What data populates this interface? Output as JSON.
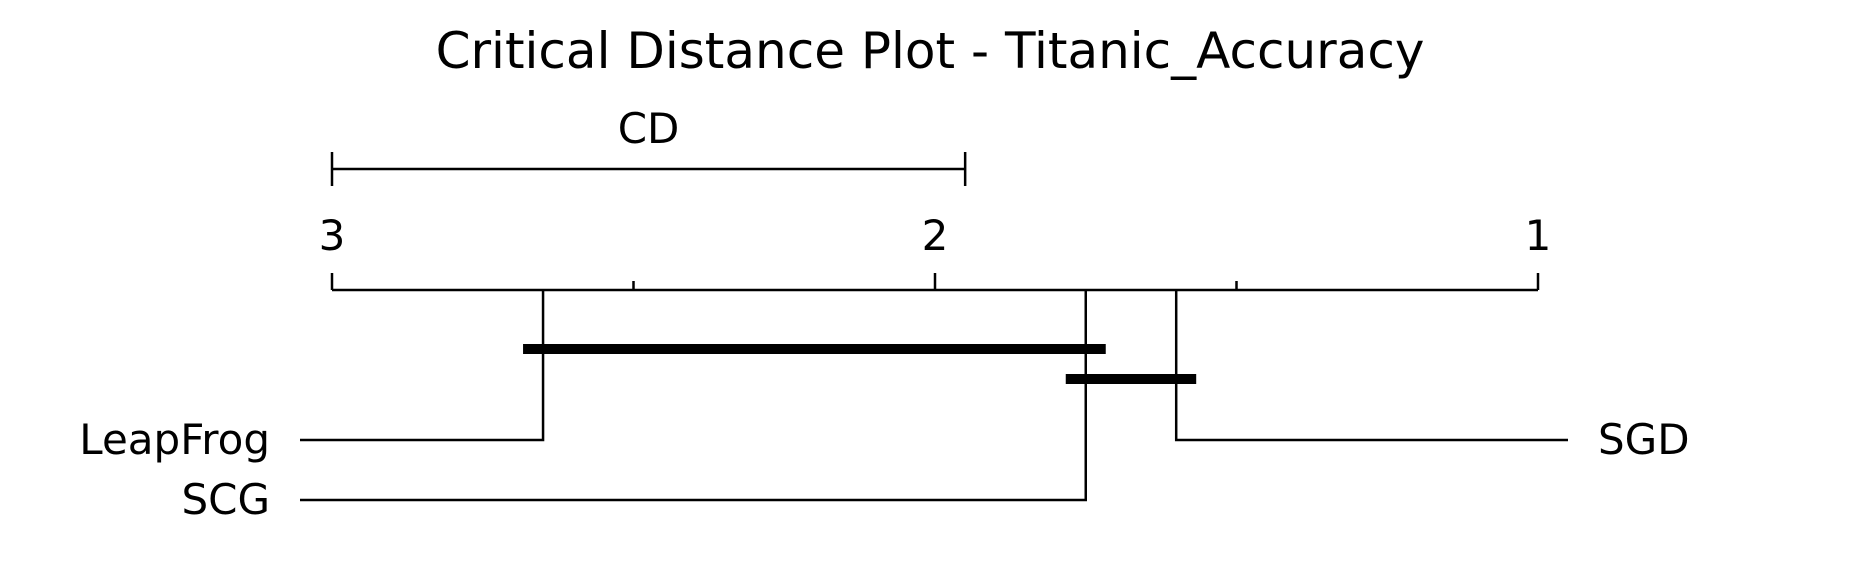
{
  "chart_data": {
    "type": "critical-distance",
    "title": "Critical Distance Plot - Titanic_Accuracy",
    "cd_label": "CD",
    "cd_value": 1.05,
    "axis": {
      "min": 1,
      "max": 3,
      "reversed": true,
      "major_ticks": [
        "3",
        "2",
        "1"
      ],
      "minor_ticks": [
        2.5,
        1.5
      ]
    },
    "methods": [
      {
        "name": "LeapFrog",
        "rank": 2.65,
        "side": "left"
      },
      {
        "name": "SCG",
        "rank": 1.75,
        "side": "left"
      },
      {
        "name": "SGD",
        "rank": 1.6,
        "side": "right"
      }
    ],
    "cliques": [
      {
        "from": 2.65,
        "to": 1.75
      },
      {
        "from": 1.75,
        "to": 1.6
      }
    ],
    "line_color": "#000000"
  }
}
